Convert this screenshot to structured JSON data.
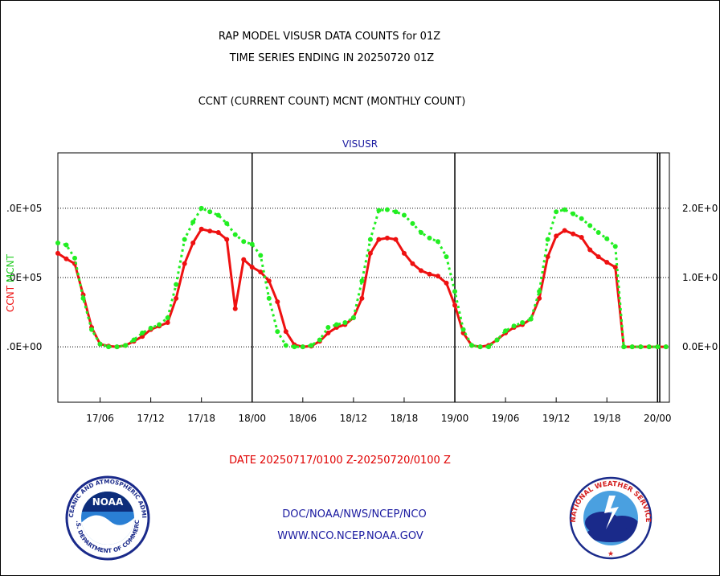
{
  "titles": {
    "line1": "RAP MODEL VISUSR DATA COUNTS for 01Z",
    "line2": "TIME SERIES ENDING IN 20250720 01Z",
    "line3": "CCNT (CURRENT COUNT) MCNT (MONTHLY COUNT)"
  },
  "footer": {
    "date_range": "DATE 20250717/0100 Z-20250720/0100 Z",
    "agency": "DOC/NOAA/NWS/NCEP/NCO",
    "website": "WWW.NCO.NCEP.NOAA.GOV"
  },
  "logos": {
    "noaa_text": "NOAA",
    "noaa_ring_top": "NATIONAL OCEANIC AND ATMOSPHERIC ADMINISTRATION",
    "noaa_ring_bottom": "U.S. DEPARTMENT OF COMMERCE",
    "nws_ring": "NATIONAL WEATHER SERVICE"
  },
  "chart_data": {
    "type": "line",
    "title": "VISUSR",
    "xlabel": "",
    "ylabel_left": "CCNT",
    "ylabel_left_sep": " MCNT",
    "x_unit": "hours since 2025-07-17 01Z",
    "xlim": [
      0,
      72.4
    ],
    "ylim": [
      -80000,
      280000
    ],
    "x_ticks": [
      5,
      11,
      17,
      23,
      29,
      35,
      41,
      47,
      53,
      59,
      65,
      71
    ],
    "x_tick_labels": [
      "17/06",
      "17/12",
      "17/18",
      "18/00",
      "18/06",
      "18/12",
      "18/18",
      "19/00",
      "19/06",
      "19/12",
      "19/18",
      "20/00"
    ],
    "day_lines": [
      23,
      47,
      71
    ],
    "y_ticks": [
      0,
      100000,
      200000
    ],
    "y_tick_labels_left": [
      ".0E+00",
      ".0E+05",
      ".0E+05"
    ],
    "y_tick_labels_right": [
      "0.0E+0",
      "1.0E+0",
      "2.0E+0"
    ],
    "grid": true,
    "series": [
      {
        "name": "CCNT",
        "color": "#ee1111",
        "style": "solid",
        "x": [
          0,
          1,
          2,
          3,
          4,
          5,
          6,
          7,
          8,
          9,
          10,
          11,
          12,
          13,
          14,
          15,
          16,
          17,
          18,
          19,
          20,
          21,
          22,
          23,
          24,
          25,
          26,
          27,
          28,
          29,
          30,
          31,
          32,
          33,
          34,
          35,
          36,
          37,
          38,
          39,
          40,
          41,
          42,
          43,
          44,
          45,
          46,
          47,
          48,
          49,
          50,
          51,
          52,
          53,
          54,
          55,
          56,
          57,
          58,
          59,
          60,
          61,
          62,
          63,
          64,
          65,
          66,
          67,
          68,
          69,
          70,
          71,
          72
        ],
        "values": [
          135000,
          127000,
          120000,
          75000,
          28000,
          4000,
          1000,
          0,
          2000,
          8000,
          15000,
          25000,
          30000,
          35000,
          70000,
          120000,
          150000,
          170000,
          167000,
          165000,
          155000,
          55000,
          126000,
          115000,
          108000,
          95000,
          65000,
          22000,
          3000,
          0,
          1000,
          8000,
          20000,
          28000,
          32000,
          42000,
          70000,
          135000,
          155000,
          157000,
          155000,
          135000,
          120000,
          110000,
          105000,
          102000,
          92000,
          60000,
          20000,
          2000,
          0,
          2000,
          10000,
          20000,
          28000,
          32000,
          40000,
          70000,
          130000,
          160000,
          168000,
          163000,
          158000,
          140000,
          130000,
          122000,
          115000,
          0,
          0,
          0,
          0,
          0,
          0
        ]
      },
      {
        "name": "MCNT",
        "color": "#22ee22",
        "style": "dotted",
        "x": [
          0,
          1,
          2,
          3,
          4,
          5,
          6,
          7,
          8,
          9,
          10,
          11,
          12,
          13,
          14,
          15,
          16,
          17,
          18,
          19,
          20,
          21,
          22,
          23,
          24,
          25,
          26,
          27,
          28,
          29,
          30,
          31,
          32,
          33,
          34,
          35,
          36,
          37,
          38,
          39,
          40,
          41,
          42,
          43,
          44,
          45,
          46,
          47,
          48,
          49,
          50,
          51,
          52,
          53,
          54,
          55,
          56,
          57,
          58,
          59,
          60,
          61,
          62,
          63,
          64,
          65,
          66,
          67,
          68,
          69,
          70,
          71,
          72
        ],
        "values": [
          150000,
          147000,
          128000,
          70000,
          25000,
          4000,
          0,
          0,
          2000,
          10000,
          20000,
          27000,
          32000,
          42000,
          90000,
          155000,
          180000,
          200000,
          195000,
          190000,
          178000,
          162000,
          152000,
          148000,
          132000,
          70000,
          22000,
          2000,
          0,
          0,
          2000,
          10000,
          28000,
          32000,
          35000,
          42000,
          95000,
          155000,
          197000,
          198000,
          195000,
          190000,
          178000,
          165000,
          157000,
          152000,
          130000,
          80000,
          25000,
          2000,
          0,
          0,
          10000,
          23000,
          30000,
          35000,
          40000,
          80000,
          155000,
          195000,
          198000,
          192000,
          185000,
          175000,
          165000,
          156000,
          145000,
          0,
          0,
          0,
          0,
          0,
          0
        ]
      }
    ]
  }
}
